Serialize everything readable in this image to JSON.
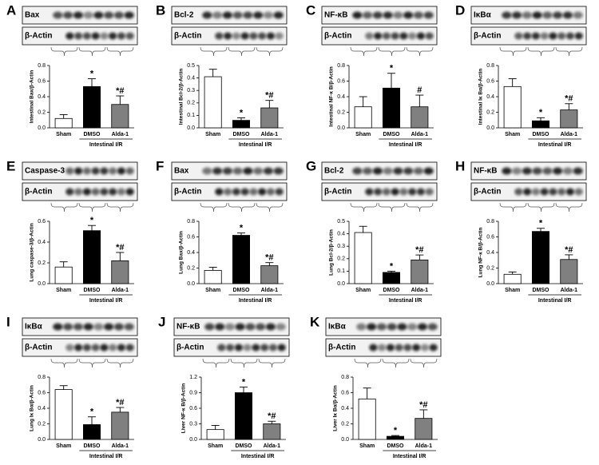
{
  "chart_data": [
    {
      "type": "bar",
      "letter": "A",
      "protein": "Bax",
      "control": "β-Actin",
      "ylabel": "Intestinal Bax/β-Actin",
      "categories": [
        "Sham",
        "DMSO",
        "Alda-1"
      ],
      "group_label": "Intestinal I/R",
      "colors": [
        "#ffffff",
        "#000000",
        "#808080"
      ],
      "values": [
        0.12,
        0.53,
        0.3
      ],
      "errors": [
        0.05,
        0.1,
        0.11
      ],
      "annotations": [
        null,
        "*",
        "*#"
      ],
      "ylim": [
        0,
        0.8
      ],
      "yticks": [
        {
          "value": 0,
          "label": "0.0"
        },
        0.2,
        0.4,
        0.6,
        0.8
      ]
    },
    {
      "type": "bar",
      "letter": "B",
      "protein": "Bcl-2",
      "control": "β-Actin",
      "ylabel": "Intestinal Bcl-2/β-Actin",
      "categories": [
        "Sham",
        "DMSO",
        "Alda-1"
      ],
      "group_label": "Intestinal I/R",
      "colors": [
        "#ffffff",
        "#000000",
        "#808080"
      ],
      "values": [
        0.41,
        0.06,
        0.16
      ],
      "errors": [
        0.06,
        0.02,
        0.06
      ],
      "annotations": [
        null,
        "*",
        "*#"
      ],
      "ylim": [
        0,
        0.5
      ],
      "yticks": [
        {
          "value": 0,
          "label": "0.0"
        },
        0.1,
        0.2,
        0.3,
        0.4,
        0.5
      ]
    },
    {
      "type": "bar",
      "letter": "C",
      "protein": "NF-κB",
      "control": "β-Actin",
      "ylabel": "Intestinal NF-κ B/β-Actin",
      "categories": [
        "Sham",
        "DMSO",
        "Alda-1"
      ],
      "group_label": "Intestinal I/R",
      "colors": [
        "#ffffff",
        "#000000",
        "#808080"
      ],
      "values": [
        0.27,
        0.51,
        0.27
      ],
      "errors": [
        0.13,
        0.19,
        0.15
      ],
      "annotations": [
        null,
        "*",
        "#"
      ],
      "ylim": [
        0,
        0.8
      ],
      "yticks": [
        {
          "value": 0,
          "label": "0.0"
        },
        0.2,
        0.4,
        0.6,
        0.8
      ]
    },
    {
      "type": "bar",
      "letter": "D",
      "protein": "IκBα",
      "control": "β-Actin",
      "ylabel": "Intestinal Iκ Bα/β-Actin",
      "categories": [
        "Sham",
        "DMSO",
        "Alda-1"
      ],
      "group_label": "Intestinal I/R",
      "colors": [
        "#ffffff",
        "#000000",
        "#808080"
      ],
      "values": [
        0.53,
        0.09,
        0.23
      ],
      "errors": [
        0.1,
        0.04,
        0.08
      ],
      "annotations": [
        null,
        "*",
        "*#"
      ],
      "ylim": [
        0,
        0.8
      ],
      "yticks": [
        {
          "value": 0,
          "label": "0.0"
        },
        0.2,
        0.4,
        0.6,
        0.8
      ]
    },
    {
      "type": "bar",
      "letter": "E",
      "protein": "Caspase-3",
      "control": "β-Actin",
      "ylabel": "Lung caspase-3/β-Actin",
      "categories": [
        "Sham",
        "DMSO",
        "Alda-1"
      ],
      "group_label": "Intestinal I/R",
      "colors": [
        "#ffffff",
        "#000000",
        "#808080"
      ],
      "values": [
        0.16,
        0.51,
        0.22
      ],
      "errors": [
        0.05,
        0.05,
        0.08
      ],
      "annotations": [
        null,
        "*",
        "*#"
      ],
      "ylim": [
        0,
        0.6
      ],
      "yticks": [
        {
          "value": 0,
          "label": "0.0"
        },
        0.2,
        0.4,
        0.6
      ]
    },
    {
      "type": "bar",
      "letter": "F",
      "protein": "Bax",
      "control": "β-Actin",
      "ylabel": "Lung Bax/β-Actin",
      "categories": [
        "Sham",
        "DMSO",
        "Alda-1"
      ],
      "group_label": "Intestinal I/R",
      "colors": [
        "#ffffff",
        "#000000",
        "#808080"
      ],
      "values": [
        0.17,
        0.62,
        0.23
      ],
      "errors": [
        0.04,
        0.03,
        0.04
      ],
      "annotations": [
        null,
        "*",
        "*#"
      ],
      "ylim": [
        0,
        0.8
      ],
      "yticks": [
        {
          "value": 0,
          "label": "0.0"
        },
        0.2,
        0.4,
        0.6,
        0.8
      ]
    },
    {
      "type": "bar",
      "letter": "G",
      "protein": "Bcl-2",
      "control": "β-Actin",
      "ylabel": "Lung Bcl-2/β-Actin",
      "categories": [
        "Sham",
        "DMSO",
        "Alda-1"
      ],
      "group_label": "Intestinal I/R",
      "colors": [
        "#ffffff",
        "#000000",
        "#808080"
      ],
      "values": [
        0.41,
        0.09,
        0.19
      ],
      "errors": [
        0.05,
        0.01,
        0.04
      ],
      "annotations": [
        null,
        "*",
        "*#"
      ],
      "ylim": [
        0,
        0.5
      ],
      "yticks": [
        {
          "value": 0,
          "label": "0.0"
        },
        0.1,
        0.2,
        0.3,
        0.4,
        0.5
      ]
    },
    {
      "type": "bar",
      "letter": "H",
      "protein": "NF-κB",
      "control": "β-Actin",
      "ylabel": "Lung NF-κ B/β-Actin",
      "categories": [
        "Sham",
        "DMSO",
        "Alda-1"
      ],
      "group_label": "Intestinal I/R",
      "colors": [
        "#ffffff",
        "#000000",
        "#808080"
      ],
      "values": [
        0.12,
        0.67,
        0.31
      ],
      "errors": [
        0.03,
        0.04,
        0.06
      ],
      "annotations": [
        null,
        "*",
        "*#"
      ],
      "ylim": [
        0,
        0.8
      ],
      "yticks": [
        {
          "value": 0,
          "label": "0.0"
        },
        0.2,
        0.4,
        0.6,
        0.8
      ]
    },
    {
      "type": "bar",
      "letter": "I",
      "protein": "IκBα",
      "control": "β-Actin",
      "ylabel": "Lung Iκ Bα/β-Actin",
      "categories": [
        "Sham",
        "DMSO",
        "Alda-1"
      ],
      "group_label": "Intestinal I/R",
      "colors": [
        "#ffffff",
        "#000000",
        "#808080"
      ],
      "values": [
        0.64,
        0.19,
        0.35
      ],
      "errors": [
        0.05,
        0.1,
        0.06
      ],
      "annotations": [
        null,
        "*",
        "*#"
      ],
      "ylim": [
        0,
        0.8
      ],
      "yticks": [
        {
          "value": 0,
          "label": "0.0"
        },
        0.2,
        0.4,
        0.6,
        0.8
      ]
    },
    {
      "type": "bar",
      "letter": "J",
      "protein": "NF-κB",
      "control": "β-Actin",
      "ylabel": "Liver NF-κ B/β-Actin",
      "categories": [
        "Sham",
        "DMSO",
        "Alda-1"
      ],
      "group_label": "Intestinal I/R",
      "colors": [
        "#ffffff",
        "#000000",
        "#808080"
      ],
      "values": [
        0.19,
        0.9,
        0.3
      ],
      "errors": [
        0.08,
        0.11,
        0.05
      ],
      "annotations": [
        null,
        "*",
        "*#"
      ],
      "ylim": [
        0,
        1.2
      ],
      "yticks": [
        {
          "value": 0,
          "label": "0.0"
        },
        0.3,
        0.6,
        0.9,
        1.2
      ]
    },
    {
      "type": "bar",
      "letter": "K",
      "protein": "IκBα",
      "control": "β-Actin",
      "ylabel": "Liver Iκ Bα/β-Actin",
      "categories": [
        "Sham",
        "DMSO",
        "Alda-1"
      ],
      "group_label": "Intestinal I/R",
      "colors": [
        "#ffffff",
        "#000000",
        "#808080"
      ],
      "values": [
        0.52,
        0.04,
        0.27
      ],
      "errors": [
        0.14,
        0.01,
        0.11
      ],
      "annotations": [
        null,
        "*",
        "*#"
      ],
      "ylim": [
        0,
        0.8
      ],
      "yticks": [
        {
          "value": 0,
          "label": "0.0"
        },
        0.2,
        0.4,
        0.6,
        0.8
      ]
    }
  ]
}
